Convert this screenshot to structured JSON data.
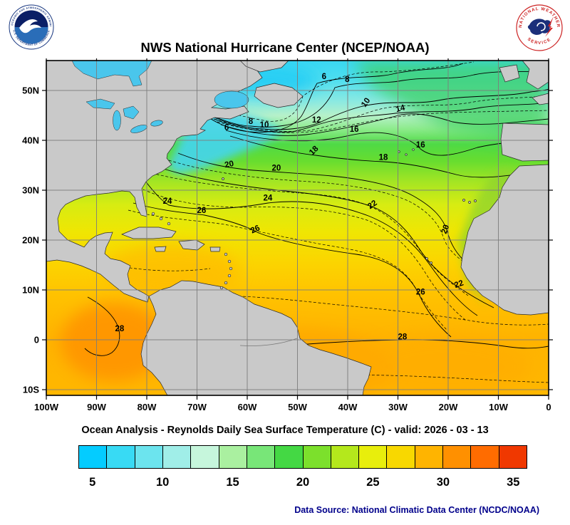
{
  "header": {
    "title": "NWS National Hurricane Center (NCEP/NOAA)"
  },
  "logos": {
    "noaa": {
      "rim_top": "NATIONAL OCEANIC AND ATMOSPHERIC ADMINISTRATION",
      "rim_bottom": "U.S. DEPARTMENT OF COMMERCE"
    },
    "nws": {
      "rim_top": "NATIONAL WEATHER",
      "rim_bottom": "SERVICE"
    }
  },
  "chart_data": {
    "type": "heatmap",
    "subtype": "filled-contour-sst-map",
    "title": "NWS National Hurricane Center (NCEP/NOAA)",
    "caption": "Ocean Analysis - Reynolds Daily Sea Surface Temperature (C) - valid: 2026 - 03 - 13",
    "variable": "Reynolds Daily Sea Surface Temperature",
    "units": "C",
    "valid_date": "2026 - 03 - 13",
    "contour_interval_c": 2,
    "region": {
      "lon_west": 100,
      "lon_east": 0,
      "lat_south": -11,
      "lat_north": 56
    },
    "axes": {
      "lon_ticks": [
        {
          "label": "100W",
          "v": 100
        },
        {
          "label": "90W",
          "v": 90
        },
        {
          "label": "80W",
          "v": 80
        },
        {
          "label": "70W",
          "v": 70
        },
        {
          "label": "60W",
          "v": 60
        },
        {
          "label": "50W",
          "v": 50
        },
        {
          "label": "40W",
          "v": 40
        },
        {
          "label": "30W",
          "v": 30
        },
        {
          "label": "20W",
          "v": 20
        },
        {
          "label": "10W",
          "v": 10
        },
        {
          "label": "0",
          "v": 0
        }
      ],
      "lat_ticks": [
        {
          "label": "50N",
          "v": 50
        },
        {
          "label": "40N",
          "v": 40
        },
        {
          "label": "30N",
          "v": 30
        },
        {
          "label": "20N",
          "v": 20
        },
        {
          "label": "10N",
          "v": 10
        },
        {
          "label": "0",
          "v": 0
        },
        {
          "label": "10S",
          "v": -10
        }
      ]
    },
    "contour_labels": [
      {
        "t": 6,
        "lon": 64.1,
        "lat": 42.1,
        "rot": 0
      },
      {
        "t": 6,
        "lon": 44.7,
        "lat": 52.3,
        "rot": 0
      },
      {
        "t": 8,
        "lon": 59.3,
        "lat": 43.3,
        "rot": 0
      },
      {
        "t": 8,
        "lon": 40.1,
        "lat": 51.7,
        "rot": 0
      },
      {
        "t": 10,
        "lon": 56.6,
        "lat": 42.6,
        "rot": 0
      },
      {
        "t": 10,
        "lon": 36.0,
        "lat": 47.3,
        "rot": -55
      },
      {
        "t": 12,
        "lon": 46.2,
        "lat": 43.6,
        "rot": 0
      },
      {
        "t": 14,
        "lon": 29.4,
        "lat": 45.9,
        "rot": -15
      },
      {
        "t": 16,
        "lon": 38.7,
        "lat": 41.7,
        "rot": 0
      },
      {
        "t": 16,
        "lon": 25.5,
        "lat": 38.6,
        "rot": 0
      },
      {
        "t": 18,
        "lon": 46.4,
        "lat": 37.6,
        "rot": -45
      },
      {
        "t": 18,
        "lon": 32.9,
        "lat": 36.1,
        "rot": 0
      },
      {
        "t": 20,
        "lon": 63.5,
        "lat": 34.7,
        "rot": -12
      },
      {
        "t": 20,
        "lon": 54.2,
        "lat": 33.9,
        "rot": 0
      },
      {
        "t": 20,
        "lon": 20.1,
        "lat": 22.0,
        "rot": -70
      },
      {
        "t": 22,
        "lon": 34.8,
        "lat": 26.7,
        "rot": -35
      },
      {
        "t": 22,
        "lon": 17.7,
        "lat": 10.7,
        "rot": -20
      },
      {
        "t": 24,
        "lon": 75.9,
        "lat": 27.3,
        "rot": 0
      },
      {
        "t": 24,
        "lon": 55.9,
        "lat": 27.9,
        "rot": 0
      },
      {
        "t": 26,
        "lon": 69.1,
        "lat": 25.4,
        "rot": 0
      },
      {
        "t": 26,
        "lon": 58.2,
        "lat": 21.7,
        "rot": -25
      },
      {
        "t": 26,
        "lon": 25.5,
        "lat": 9.1,
        "rot": 0
      },
      {
        "t": 28,
        "lon": 85.4,
        "lat": 1.7,
        "rot": 0
      },
      {
        "t": 28,
        "lon": 29.1,
        "lat": 0.1,
        "rot": 0
      }
    ],
    "colorbar": {
      "min": 4,
      "max": 36,
      "step": 2,
      "unit": "C",
      "colors": [
        "#04ccff",
        "#38daf4",
        "#6ce4ee",
        "#a0eee8",
        "#c6f6dc",
        "#aaf0a0",
        "#78e678",
        "#44d844",
        "#7ce02c",
        "#b4e81c",
        "#e8ee0c",
        "#f8d800",
        "#ffb400",
        "#ff9000",
        "#ff6c00",
        "#f03800"
      ],
      "tick_labels": [
        "5",
        "10",
        "15",
        "20",
        "25",
        "30",
        "35"
      ],
      "tick_values": [
        5,
        10,
        15,
        20,
        25,
        30,
        35
      ]
    }
  },
  "footer": {
    "data_source": "Data Source: National Climatic Data Center (NCDC/NOAA)"
  }
}
